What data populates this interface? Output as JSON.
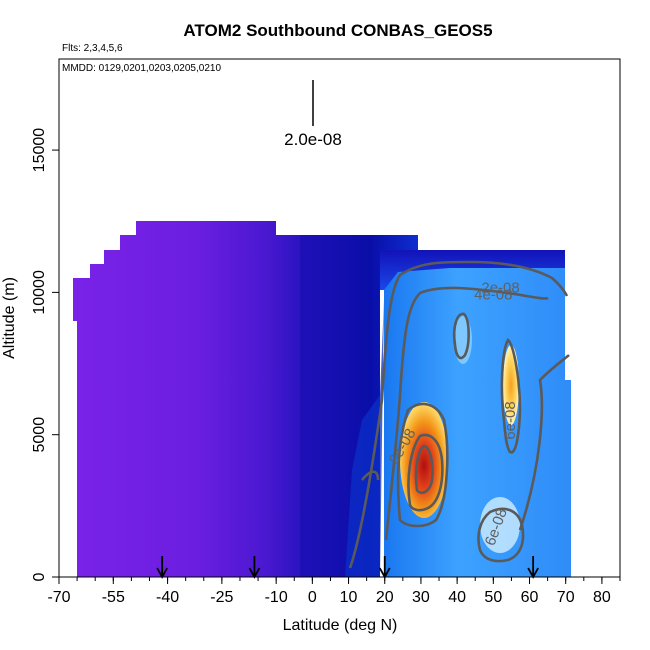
{
  "chart_data": {
    "type": "heatmap",
    "title": "ATOM2 Southbound CONBAS_GEOS5",
    "flights_note": "Flts: 2,3,4,5,6",
    "dates_note": "MMDD: 0129,0201,0203,0205,0210",
    "xlabel": "Latitude (deg N)",
    "ylabel": "Altitude (m)",
    "xlim": [
      -70,
      85
    ],
    "ylim": [
      0,
      18200
    ],
    "x_ticks": [
      -70,
      -55,
      -40,
      -25,
      -10,
      0,
      10,
      20,
      30,
      40,
      50,
      60,
      70,
      80
    ],
    "x_tick_labels": [
      "-70",
      "-55",
      "-40",
      "-25",
      "-10",
      "0",
      "10",
      "20",
      "30",
      "40",
      "50",
      "60",
      "70",
      "80"
    ],
    "y_ticks": [
      0,
      5000,
      10000,
      15000
    ],
    "y_tick_labels": [
      "0",
      "5000",
      "10000",
      "15000"
    ],
    "scale_annotation": "2.0e-08",
    "contour_levels": [
      "2e-08",
      "4e-08",
      "6e-08"
    ],
    "contour_labels": [
      {
        "text": "2e-08",
        "lat": 52,
        "alt": 10000
      },
      {
        "text": "4e-08",
        "lat": 50,
        "alt": 9750
      },
      {
        "text": "6e-08",
        "lat": 26,
        "alt": 4500
      },
      {
        "text": "6e-08",
        "lat": 56,
        "alt": 5500
      },
      {
        "text": "6e-08",
        "lat": 52,
        "alt": 1700
      }
    ],
    "flight_markers_lat": [
      -41.5,
      -16,
      20,
      61
    ],
    "palette": {
      "low": "#7a20e6",
      "mid": "#1414c0",
      "high": "#4aa8ff",
      "peak": "#d42a0a",
      "contour": "#5a5a5a"
    },
    "regions": [
      {
        "lat_range": [
          -65,
          0
        ],
        "alt_range": [
          0,
          11000
        ],
        "value": "low"
      },
      {
        "lat_range": [
          0,
          20
        ],
        "alt_range": [
          0,
          11500
        ],
        "value": "mid"
      },
      {
        "lat_range": [
          20,
          70
        ],
        "alt_range": [
          0,
          11000
        ],
        "value": "high"
      },
      {
        "lat_range": [
          28,
          34
        ],
        "alt_range": [
          2500,
          5500
        ],
        "value": "peak"
      }
    ]
  }
}
